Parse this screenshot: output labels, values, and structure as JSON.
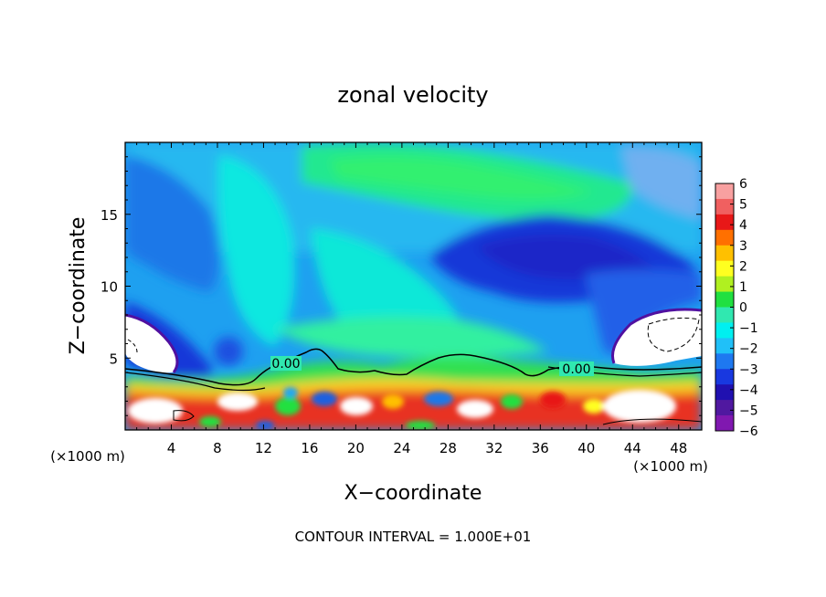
{
  "chart_data": {
    "type": "heatmap",
    "title": "zonal velocity",
    "xlabel": "X−coordinate",
    "ylabel": "Z−coordinate",
    "x_unit_left": "(×1000 m)",
    "x_unit_right": "(×1000 m)",
    "xlim": [
      0,
      50
    ],
    "ylim": [
      0,
      20
    ],
    "xticks": [
      4,
      8,
      12,
      16,
      20,
      24,
      28,
      32,
      36,
      40,
      44,
      48
    ],
    "xtick_labels": [
      "4",
      "8",
      "12",
      "16",
      "20",
      "24",
      "28",
      "32",
      "36",
      "40",
      "44",
      "48"
    ],
    "yticks": [
      5,
      10,
      15
    ],
    "ytick_labels": [
      "5",
      "10",
      "15"
    ],
    "colorbar": {
      "levels": [
        6,
        5,
        4,
        3,
        2,
        1,
        0,
        -1,
        -2,
        -3,
        -4,
        -5,
        -6
      ],
      "labels": [
        "6",
        "5",
        "4",
        "3",
        "2",
        "1",
        "0",
        "−1",
        "−2",
        "−3",
        "−4",
        "−5",
        "−6"
      ],
      "colors": [
        "#f8a0a0",
        "#f06060",
        "#e81818",
        "#ff7000",
        "#ffc000",
        "#ffff20",
        "#b0f020",
        "#20e040",
        "#30e8b0",
        "#00f0f0",
        "#20c0f8",
        "#1e78f0",
        "#1838e0",
        "#2010b0",
        "#5018a0",
        "#8018b0"
      ]
    },
    "contour_labels": [
      "0.00",
      "0.00"
    ],
    "annotation": "CONTOUR INTERVAL = 1.000E+01"
  }
}
